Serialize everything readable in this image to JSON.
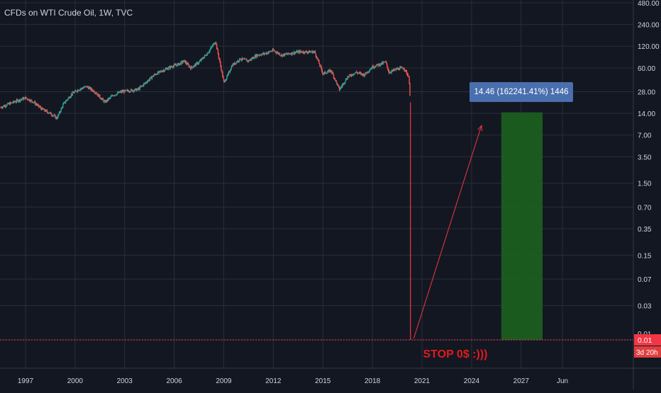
{
  "header": {
    "symbol_title": "CFDs on WTI Crude Oil, 1W, TVC"
  },
  "colors": {
    "background": "#131722",
    "grid": "#2a2e39",
    "axis_text": "#d1d4dc",
    "up": "#26a69a",
    "down": "#ef5350",
    "price_line": "#f23645",
    "target_zone": "#1b5e20",
    "label_box": "#4a6fae"
  },
  "chart_data": {
    "type": "line",
    "title": "CFDs on WTI Crude Oil, 1W, TVC",
    "y_scale": "log",
    "grid": true,
    "x_ticks": [
      "1997",
      "2000",
      "2003",
      "2006",
      "2009",
      "2012",
      "2015",
      "2018",
      "2021",
      "2024",
      "2027",
      "Jun"
    ],
    "x_tick_years": [
      1997,
      2000,
      2003,
      2006,
      2009,
      2012,
      2015,
      2018,
      2021,
      2024,
      2027,
      2029.5
    ],
    "y_ticks": [
      "480.00",
      "240.00",
      "120.00",
      "60.00",
      "28.00",
      "14.00",
      "7.00",
      "3.50",
      "1.50",
      "0.70",
      "0.35",
      "0.15",
      "0.07",
      "0.03",
      "0.01"
    ],
    "y_tick_values": [
      480,
      240,
      120,
      60,
      28,
      14,
      7,
      3.5,
      1.5,
      0.7,
      0.35,
      0.15,
      0.07,
      0.03,
      0.01
    ],
    "series": [
      {
        "values_x": [
          1995.5,
          1996.0,
          1996.5,
          1997.0,
          1997.5,
          1998.0,
          1998.5,
          1998.9,
          1999.3,
          1999.8,
          2000.2,
          2000.7,
          2001.2,
          2001.8,
          2002.3,
          2002.8,
          2003.3,
          2003.8,
          2004.3,
          2004.8,
          2005.3,
          2005.8,
          2006.3,
          2006.6,
          2007.0,
          2007.5,
          2008.0,
          2008.5,
          2008.8,
          2009.0,
          2009.2,
          2009.5,
          2010.0,
          2010.5,
          2011.0,
          2011.5,
          2012.0,
          2012.5,
          2013.0,
          2013.5,
          2014.0,
          2014.5,
          2015.0,
          2015.5,
          2016.0,
          2016.5,
          2017.0,
          2017.5,
          2018.0,
          2018.8,
          2019.0,
          2019.5,
          2019.9,
          2020.2,
          2020.3
        ],
        "values": [
          17,
          19,
          21,
          23,
          20,
          16,
          14,
          12,
          19,
          26,
          30,
          33,
          28,
          20,
          25,
          28,
          29,
          30,
          38,
          48,
          55,
          62,
          68,
          75,
          60,
          72,
          95,
          140,
          65,
          38,
          45,
          65,
          80,
          75,
          90,
          95,
          105,
          90,
          95,
          100,
          100,
          100,
          50,
          55,
          30,
          45,
          52,
          48,
          62,
          72,
          52,
          58,
          60,
          45,
          20
        ]
      }
    ],
    "crash_to": 0.01,
    "target_zone": {
      "x_from": 2025.8,
      "x_to": 2028.3,
      "y_from": 0.01,
      "y_to": 14.46
    },
    "annotations": {
      "target_label": "14.46 (162241.41%) 1446",
      "stop_text": "STOP 0$  :)))",
      "last_price": "0.01",
      "countdown": "3d 20h"
    }
  }
}
